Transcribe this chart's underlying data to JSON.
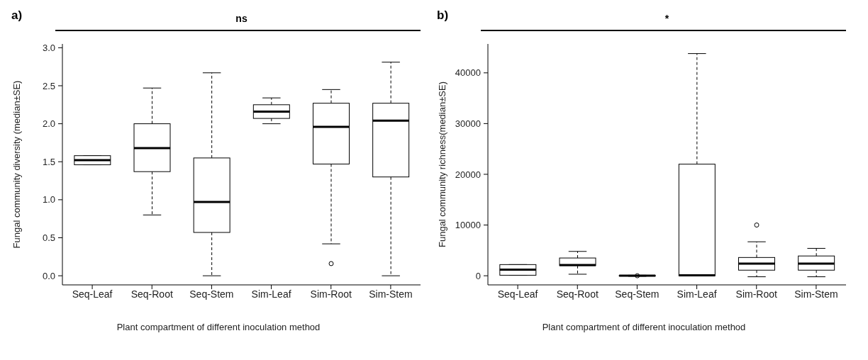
{
  "chart_data": [
    {
      "type": "box",
      "title": "a)",
      "annotations": [
        "ns"
      ],
      "ylabel": "Fungal community diversity (median±SE)",
      "xlabel": "Plant compartment of different inoculation method",
      "categories": [
        "Seq-Leaf",
        "Seq-Root",
        "Seq-Stem",
        "Sim-Leaf",
        "Sim-Root",
        "Sim-Stem"
      ],
      "boxes": [
        {
          "low": 1.46,
          "q1": 1.46,
          "median": 1.52,
          "q3": 1.58,
          "high": 1.58
        },
        {
          "low": 0.8,
          "q1": 1.37,
          "median": 1.68,
          "q3": 2.0,
          "high": 2.47
        },
        {
          "low": 0.0,
          "q1": 0.57,
          "median": 0.97,
          "q3": 1.55,
          "high": 2.67
        },
        {
          "low": 2.0,
          "q1": 2.07,
          "median": 2.16,
          "q3": 2.25,
          "high": 2.34
        },
        {
          "low": 0.42,
          "q1": 1.47,
          "median": 1.96,
          "q3": 2.27,
          "high": 2.45,
          "outliers": [
            0.16
          ]
        },
        {
          "low": 0.0,
          "q1": 1.3,
          "median": 2.04,
          "q3": 2.27,
          "high": 2.81
        }
      ],
      "ylim": [
        -0.12,
        3.05
      ],
      "yticks": [
        {
          "value": 0,
          "label": "0.0"
        },
        {
          "value": 0.5,
          "label": "0.5"
        },
        {
          "value": 1,
          "label": "1.0"
        },
        {
          "value": 1.5,
          "label": "1.5"
        },
        {
          "value": 2,
          "label": "2.0"
        },
        {
          "value": 2.5,
          "label": "2.5"
        },
        {
          "value": 3,
          "label": "3.0"
        }
      ]
    },
    {
      "type": "box",
      "title": "b)",
      "annotations": [
        "*"
      ],
      "ylabel": "Fungal community richness(median±SE)",
      "xlabel": "Plant compartment of different inoculation method",
      "categories": [
        "Seq-Leaf",
        "Seq-Root",
        "Seq-Stem",
        "Sim-Leaf",
        "Sim-Root",
        "Sim-Stem"
      ],
      "boxes": [
        {
          "low": 100,
          "q1": 100,
          "median": 1200,
          "q3": 2200,
          "high": 2200
        },
        {
          "low": 300,
          "q1": 2000,
          "median": 2100,
          "q3": 3500,
          "high": 4800
        },
        {
          "low": -100,
          "q1": -50,
          "median": 0,
          "q3": 50,
          "high": 100,
          "outliers": [
            0
          ]
        },
        {
          "low": 0,
          "q1": 0,
          "median": 100,
          "q3": 22000,
          "high": 43800
        },
        {
          "low": -200,
          "q1": 1100,
          "median": 2400,
          "q3": 3600,
          "high": 6700,
          "outliers": [
            10000
          ]
        },
        {
          "low": -200,
          "q1": 1100,
          "median": 2400,
          "q3": 3900,
          "high": 5400
        }
      ],
      "ylim": [
        -1800,
        45700
      ],
      "yticks": [
        0,
        10000,
        20000,
        30000,
        40000
      ]
    }
  ]
}
